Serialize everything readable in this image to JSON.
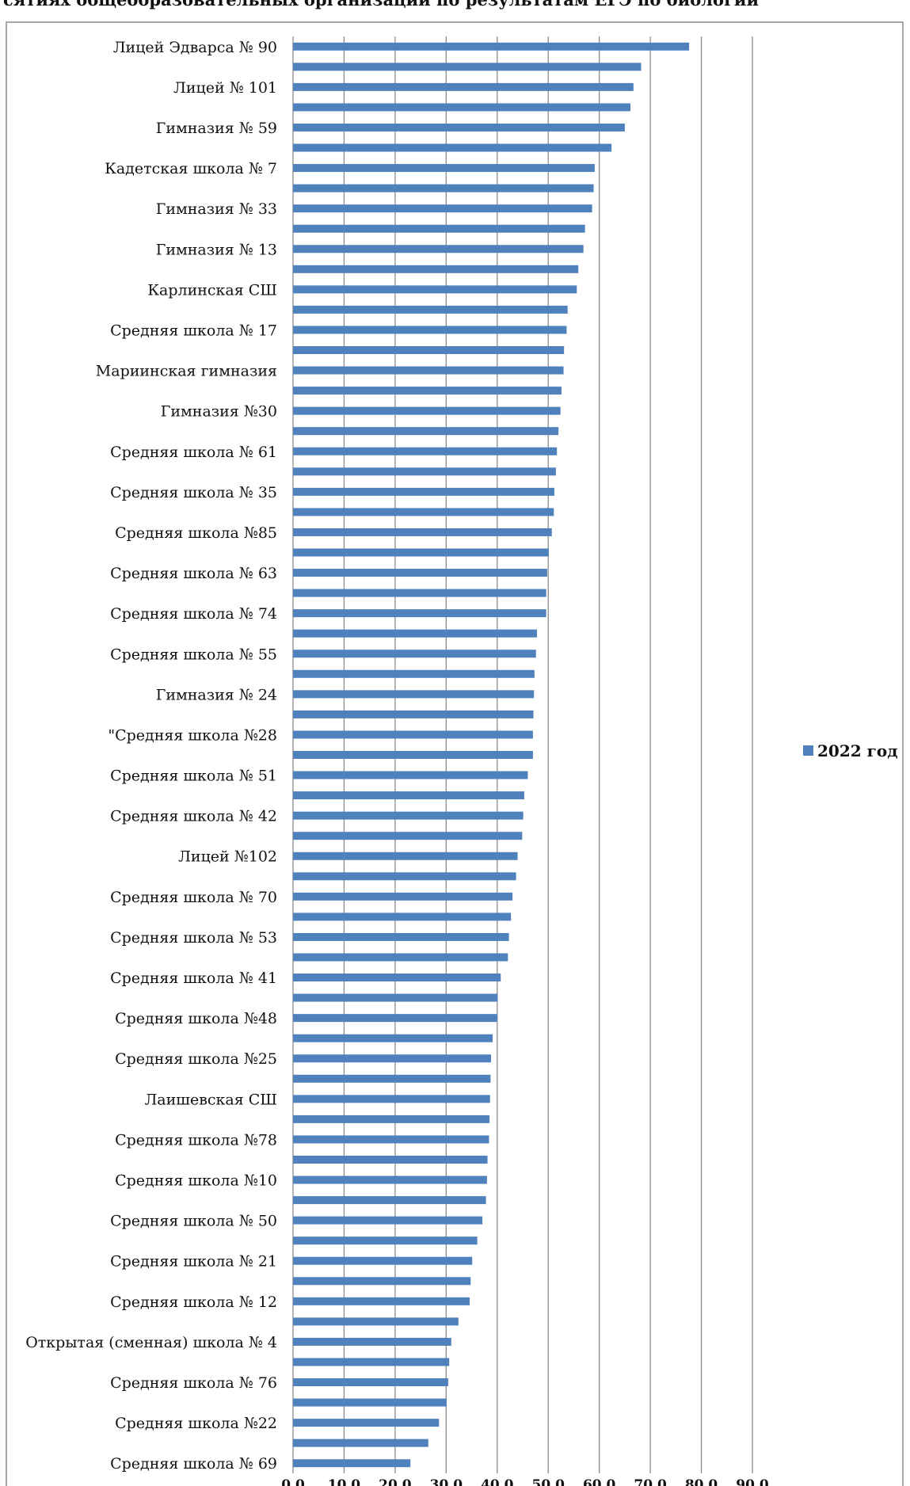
{
  "title": "сятиях общеобразовательных организаций по результатам ЕГЭ по биологии",
  "colors": {
    "bar": "#4f81bd",
    "grid": "#8c8c8c",
    "frame": "#8c8c8c",
    "text": "#111111"
  },
  "chart_data": {
    "type": "bar",
    "orientation": "horizontal",
    "title": "сятиях общеобразовательных организаций по результатам ЕГЭ по биологии",
    "xlabel": "",
    "ylabel": "",
    "xlim": [
      0,
      90
    ],
    "x_ticks": [
      "0,0",
      "10,0",
      "20,0",
      "30,0",
      "40,0",
      "50,0",
      "60,0",
      "70,0",
      "80,0",
      "90,0"
    ],
    "grid": true,
    "legend_position": "right",
    "categories": [
      "Лицей Эдварса № 90",
      "",
      "Лицей № 101",
      "",
      "Гимназия № 59",
      "",
      "Кадетская школа № 7",
      "",
      "Гимназия № 33",
      "",
      "Гимназия № 13",
      "",
      "Карлинская СШ",
      "",
      "Средняя школа № 17",
      "",
      "Мариинская гимназия",
      "",
      "Гимназия №30",
      "",
      "Средняя школа № 61",
      "",
      "Средняя  школа № 35",
      "",
      "Средняя школа №85",
      "",
      "Средняя школа № 63",
      "",
      "Средняя школа № 74",
      "",
      "Средняя школа № 55 ",
      "",
      "Гимназия № 24",
      "",
      "\"Средняя  школа №28",
      "",
      "Средняя школа № 51",
      "",
      "Средняя школа № 42",
      "",
      "Лицей №102",
      "",
      "Средняя школа № 70",
      "",
      "Средняя школа № 53 ",
      "",
      "Средняя школа № 41",
      "",
      "Средняя школа №48",
      "",
      "Средняя  школа №25 ",
      "",
      "Лаишевская СШ",
      "",
      "Средняя  школа №78",
      "",
      "Средняя школа №10",
      "",
      "Средняя  школа № 50",
      "",
      "Средняя школа № 21",
      "",
      "Средняя школа № 12",
      "",
      "Открытая (сменная) школа № 4",
      "",
      "Средняя школа № 76",
      "",
      "Средняя школа №22",
      "",
      "Средняя школа № 69"
    ],
    "series": [
      {
        "name": "2022 год",
        "values": [
          77.6,
          68.2,
          66.7,
          66.1,
          65.0,
          62.4,
          59.1,
          58.9,
          58.6,
          57.2,
          56.9,
          55.9,
          55.6,
          53.8,
          53.6,
          53.1,
          53.0,
          52.6,
          52.4,
          52.0,
          51.7,
          51.5,
          51.2,
          51.1,
          50.7,
          50.1,
          49.8,
          49.6,
          49.6,
          47.8,
          47.6,
          47.3,
          47.2,
          47.1,
          47.0,
          47.0,
          46.0,
          45.3,
          45.1,
          44.9,
          44.0,
          43.7,
          43.0,
          42.7,
          42.3,
          42.1,
          40.7,
          40.1,
          40.0,
          39.1,
          38.8,
          38.7,
          38.6,
          38.5,
          38.4,
          38.1,
          38.0,
          37.8,
          37.1,
          36.1,
          35.1,
          34.8,
          34.6,
          32.4,
          31.0,
          30.6,
          30.4,
          30.1,
          28.6,
          26.5,
          23.0
        ]
      }
    ]
  }
}
